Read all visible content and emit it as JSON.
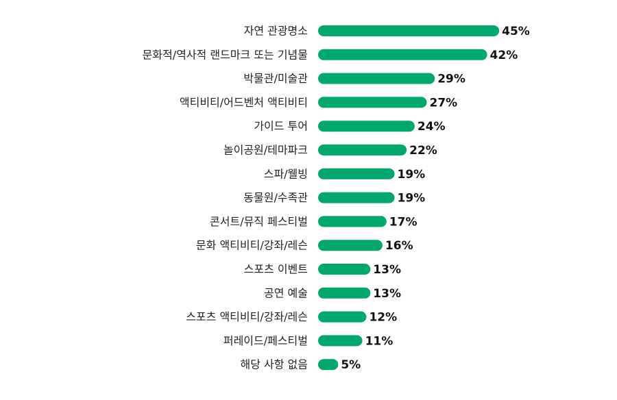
{
  "chart_data": {
    "type": "bar",
    "orientation": "horizontal",
    "title": "",
    "xlabel": "",
    "ylabel": "",
    "xlim": [
      0,
      100
    ],
    "grid": false,
    "legend": "none",
    "value_suffix": "%",
    "bar_color": "#00A86B",
    "categories": [
      "자연 관광명소",
      "문화적/역사적 랜드마크 또는 기념물",
      "박물관/미술관",
      "액티비티/어드벤처 액티비티",
      "가이드 투어",
      "놀이공원/테마파크",
      "스파/웰빙",
      "동물원/수족관",
      "콘서트/뮤직 페스티벌",
      "문화 액티비티/강좌/레슨",
      "스포츠 이벤트",
      "공연 예술",
      "스포츠 액티비티/강좌/레슨",
      "퍼레이드/페스티벌",
      "해당 사항 없음"
    ],
    "values": [
      45,
      42,
      29,
      27,
      24,
      22,
      19,
      19,
      17,
      16,
      13,
      13,
      12,
      11,
      5
    ]
  }
}
